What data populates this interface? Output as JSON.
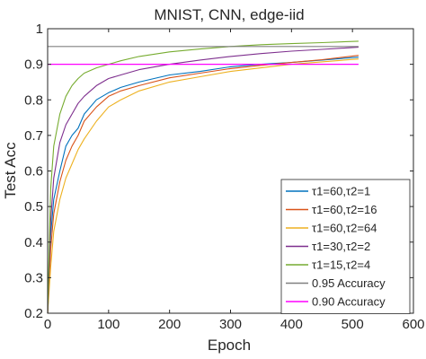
{
  "chart_data": {
    "type": "line",
    "title": "MNIST, CNN, edge-iid",
    "xlabel": "Epoch",
    "ylabel": "Test Acc",
    "xlim": [
      0,
      600
    ],
    "ylim": [
      0.2,
      1.0
    ],
    "xticks": [
      "0",
      "100",
      "200",
      "300",
      "400",
      "500",
      "600"
    ],
    "yticks": [
      "0.2",
      "0.3",
      "0.4",
      "0.5",
      "0.6",
      "0.7",
      "0.8",
      "0.9",
      "1"
    ],
    "grid": false,
    "legend_position": "bottom-right",
    "series": [
      {
        "name": "τ1=60,τ2=1",
        "color": "#0072BD",
        "x": [
          0,
          5,
          10,
          20,
          30,
          40,
          50,
          60,
          80,
          100,
          120,
          150,
          200,
          250,
          300,
          350,
          400,
          450,
          510
        ],
        "y": [
          0.2,
          0.42,
          0.52,
          0.6,
          0.67,
          0.7,
          0.72,
          0.76,
          0.8,
          0.82,
          0.835,
          0.85,
          0.87,
          0.88,
          0.893,
          0.9,
          0.905,
          0.912,
          0.92
        ]
      },
      {
        "name": "τ1=60,τ2=16",
        "color": "#D95319",
        "x": [
          0,
          5,
          10,
          20,
          30,
          40,
          50,
          60,
          80,
          100,
          120,
          150,
          200,
          250,
          300,
          350,
          400,
          450,
          510
        ],
        "y": [
          0.2,
          0.38,
          0.48,
          0.57,
          0.63,
          0.67,
          0.7,
          0.74,
          0.78,
          0.81,
          0.825,
          0.84,
          0.862,
          0.875,
          0.888,
          0.897,
          0.905,
          0.913,
          0.925
        ]
      },
      {
        "name": "τ1=60,τ2=64",
        "color": "#EDB120",
        "x": [
          0,
          5,
          10,
          20,
          30,
          40,
          50,
          60,
          80,
          100,
          120,
          150,
          200,
          250,
          300,
          350,
          400,
          450,
          510
        ],
        "y": [
          0.2,
          0.33,
          0.43,
          0.52,
          0.58,
          0.62,
          0.66,
          0.69,
          0.74,
          0.78,
          0.8,
          0.825,
          0.85,
          0.865,
          0.88,
          0.89,
          0.9,
          0.907,
          0.915
        ]
      },
      {
        "name": "τ1=30,τ2=2",
        "color": "#7E2F8E",
        "x": [
          0,
          5,
          10,
          20,
          30,
          40,
          50,
          60,
          80,
          100,
          120,
          150,
          200,
          250,
          300,
          350,
          400,
          450,
          510
        ],
        "y": [
          0.2,
          0.46,
          0.58,
          0.68,
          0.73,
          0.76,
          0.79,
          0.81,
          0.84,
          0.86,
          0.87,
          0.885,
          0.9,
          0.912,
          0.922,
          0.93,
          0.937,
          0.942,
          0.948
        ]
      },
      {
        "name": "τ1=15,τ2=4",
        "color": "#77AC30",
        "x": [
          0,
          5,
          10,
          20,
          30,
          40,
          50,
          60,
          80,
          100,
          120,
          150,
          200,
          250,
          300,
          350,
          400,
          450,
          510
        ],
        "y": [
          0.2,
          0.55,
          0.67,
          0.76,
          0.81,
          0.84,
          0.86,
          0.875,
          0.89,
          0.9,
          0.91,
          0.922,
          0.935,
          0.943,
          0.95,
          0.955,
          0.958,
          0.961,
          0.965
        ]
      },
      {
        "name": "0.95 Accuracy",
        "color": "#808080",
        "x": [
          0,
          510
        ],
        "y": [
          0.95,
          0.95
        ]
      },
      {
        "name": "0.90 Accuracy",
        "color": "#FF00FF",
        "x": [
          0,
          510
        ],
        "y": [
          0.9,
          0.9
        ]
      }
    ]
  }
}
